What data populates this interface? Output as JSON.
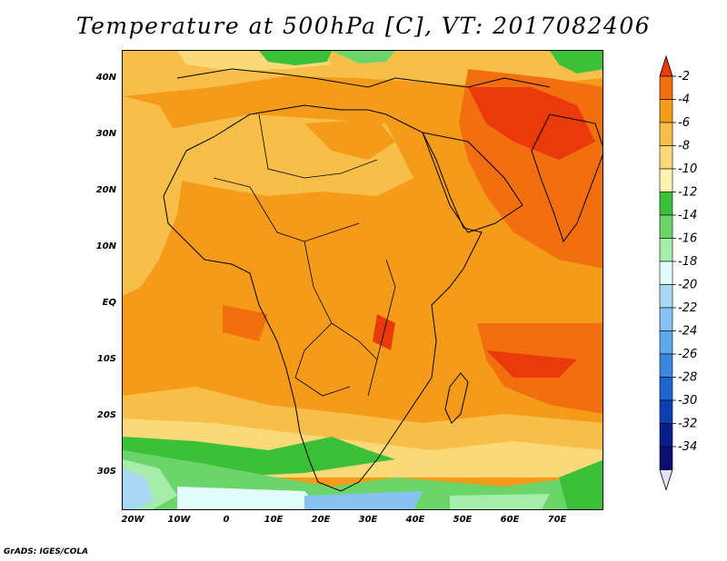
{
  "title": "Temperature at 500hPa [C], VT: 2017082406",
  "credit": "GrADS: IGES/COLA",
  "lat_labels": [
    "40N",
    "30N",
    "20N",
    "10N",
    "EQ",
    "10S",
    "20S",
    "30S"
  ],
  "lon_labels": [
    "20W",
    "10W",
    "0",
    "10E",
    "20E",
    "30E",
    "40E",
    "50E",
    "60E",
    "70E"
  ],
  "colorbar": {
    "labels": [
      "-2",
      "-4",
      "-6",
      "-8",
      "-10",
      "-12",
      "-14",
      "-16",
      "-18",
      "-20",
      "-22",
      "-24",
      "-26",
      "-28",
      "-30",
      "-32",
      "-34"
    ],
    "colors": [
      "#ea3a0c",
      "#f26f10",
      "#f59b1a",
      "#f7bf49",
      "#fad978",
      "#fdf2b0",
      "#3cc03a",
      "#6cd56a",
      "#a6ecaa",
      "#e3fdfd",
      "#a8d8f2",
      "#86c3f0",
      "#5fa8ea",
      "#3c87e0",
      "#1e63cf",
      "#0e3fb1",
      "#0b1f8c",
      "#0a0e6d",
      "#e4e1fb"
    ]
  }
}
